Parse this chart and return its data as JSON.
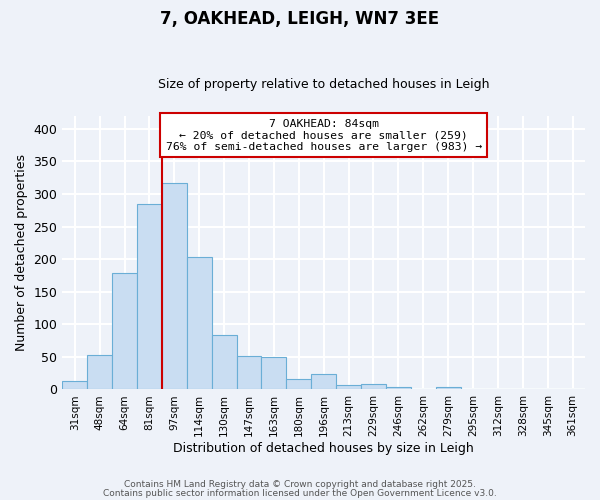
{
  "title": "7, OAKHEAD, LEIGH, WN7 3EE",
  "subtitle": "Size of property relative to detached houses in Leigh",
  "xlabel": "Distribution of detached houses by size in Leigh",
  "ylabel": "Number of detached properties",
  "bar_labels": [
    "31sqm",
    "48sqm",
    "64sqm",
    "81sqm",
    "97sqm",
    "114sqm",
    "130sqm",
    "147sqm",
    "163sqm",
    "180sqm",
    "196sqm",
    "213sqm",
    "229sqm",
    "246sqm",
    "262sqm",
    "279sqm",
    "295sqm",
    "312sqm",
    "328sqm",
    "345sqm",
    "361sqm"
  ],
  "bar_values": [
    13,
    53,
    178,
    284,
    317,
    204,
    83,
    51,
    50,
    16,
    24,
    7,
    9,
    4,
    0,
    4,
    0,
    0,
    0,
    0,
    1
  ],
  "bar_color": "#c9ddf2",
  "bar_edge_color": "#6aaed6",
  "vline_x_idx": 3,
  "vline_color": "#cc0000",
  "annotation_title": "7 OAKHEAD: 84sqm",
  "annotation_line1": "← 20% of detached houses are smaller (259)",
  "annotation_line2": "76% of semi-detached houses are larger (983) →",
  "annotation_box_color": "#ffffff",
  "annotation_box_edge": "#cc0000",
  "ylim": [
    0,
    420
  ],
  "yticks": [
    0,
    50,
    100,
    150,
    200,
    250,
    300,
    350,
    400
  ],
  "background_color": "#eef2f9",
  "grid_color": "#ffffff",
  "footnote1": "Contains HM Land Registry data © Crown copyright and database right 2025.",
  "footnote2": "Contains public sector information licensed under the Open Government Licence v3.0."
}
